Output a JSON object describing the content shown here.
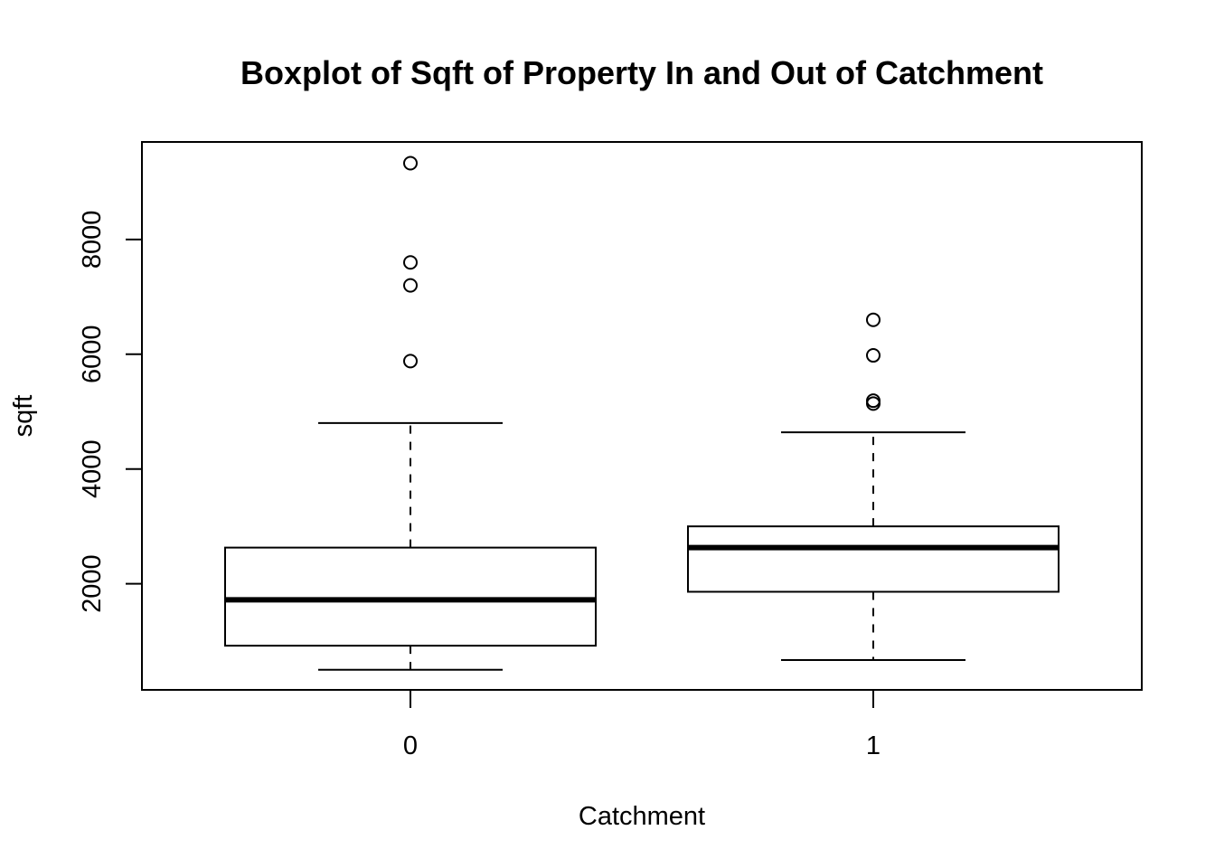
{
  "chart_data": {
    "type": "boxplot",
    "title": "Boxplot of Sqft of Property In and Out of Catchment",
    "xlabel": "Catchment",
    "ylabel": "sqft",
    "categories": [
      "0",
      "1"
    ],
    "yticks": [
      2000,
      4000,
      6000,
      8000
    ],
    "ylim": [
      150,
      9700
    ],
    "grid": false,
    "legend": "none",
    "boxes": [
      {
        "category": "0",
        "whisker_low": 500,
        "q1": 920,
        "median": 1720,
        "q3": 2630,
        "whisker_high": 4800,
        "outliers": [
          5880,
          7200,
          7600,
          9330
        ]
      },
      {
        "category": "1",
        "whisker_low": 670,
        "q1": 1860,
        "median": 2630,
        "q3": 3000,
        "whisker_high": 4640,
        "outliers": [
          5140,
          5190,
          5980,
          6600
        ]
      }
    ]
  }
}
